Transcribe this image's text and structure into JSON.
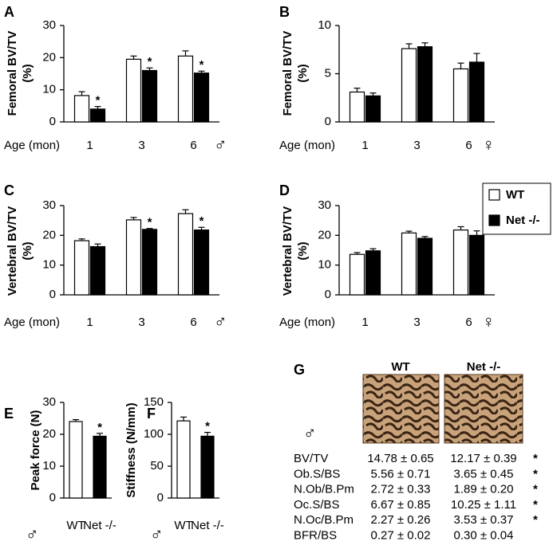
{
  "chart_data": [
    {
      "type": "bar",
      "panel": "A",
      "ylabel": [
        "Femoral BV/TV",
        "(%)"
      ],
      "xlabel": "Age (mon)",
      "sex": "♂",
      "categories": [
        "1",
        "3",
        "6"
      ],
      "ylim": [
        0,
        30
      ],
      "yticks": [
        0,
        10,
        20,
        30
      ],
      "series": [
        {
          "name": "WT",
          "color": "#ffffff",
          "values": [
            8.2,
            19.5,
            20.5
          ],
          "errors": [
            1.2,
            1.0,
            1.6
          ],
          "stars": [
            null,
            null,
            null
          ]
        },
        {
          "name": "Net -/-",
          "color": "#000000",
          "values": [
            4.0,
            16.0,
            15.2
          ],
          "errors": [
            0.8,
            0.8,
            0.6
          ],
          "stars": [
            "*",
            "*",
            "*"
          ]
        }
      ]
    },
    {
      "type": "bar",
      "panel": "B",
      "ylabel": [
        "Femoral BV/TV",
        "(%)"
      ],
      "xlabel": "Age (mon)",
      "sex": "♀",
      "categories": [
        "1",
        "3",
        "6"
      ],
      "ylim": [
        0,
        10
      ],
      "yticks": [
        0,
        5,
        10
      ],
      "series": [
        {
          "name": "WT",
          "color": "#ffffff",
          "values": [
            3.1,
            7.6,
            5.5
          ],
          "errors": [
            0.4,
            0.5,
            0.6
          ],
          "stars": [
            null,
            null,
            null
          ]
        },
        {
          "name": "Net -/-",
          "color": "#000000",
          "values": [
            2.7,
            7.8,
            6.2
          ],
          "errors": [
            0.3,
            0.4,
            0.9
          ],
          "stars": [
            null,
            null,
            null
          ]
        }
      ]
    },
    {
      "type": "bar",
      "panel": "C",
      "ylabel": [
        "Vertebral BV/TV",
        "(%)"
      ],
      "xlabel": "Age (mon)",
      "sex": "♂",
      "categories": [
        "1",
        "3",
        "6"
      ],
      "ylim": [
        0,
        30
      ],
      "yticks": [
        0,
        10,
        20,
        30
      ],
      "series": [
        {
          "name": "WT",
          "color": "#ffffff",
          "values": [
            18.2,
            25.2,
            27.3
          ],
          "errors": [
            0.6,
            0.8,
            1.3
          ],
          "stars": [
            null,
            null,
            null
          ]
        },
        {
          "name": "Net -/-",
          "color": "#000000",
          "values": [
            16.2,
            22.0,
            21.8
          ],
          "errors": [
            0.9,
            0.3,
            0.9
          ],
          "stars": [
            null,
            "*",
            "*"
          ]
        }
      ]
    },
    {
      "type": "bar",
      "panel": "D",
      "ylabel": [
        "Vertebral BV/TV",
        "(%)"
      ],
      "xlabel": "Age (mon)",
      "sex": "♀",
      "categories": [
        "1",
        "3",
        "6"
      ],
      "ylim": [
        0,
        30
      ],
      "yticks": [
        0,
        10,
        20,
        30
      ],
      "series": [
        {
          "name": "WT",
          "color": "#ffffff",
          "values": [
            13.6,
            20.8,
            21.8
          ],
          "errors": [
            0.6,
            0.6,
            1.1
          ],
          "stars": [
            null,
            null,
            null
          ]
        },
        {
          "name": "Net -/-",
          "color": "#000000",
          "values": [
            14.8,
            19.0,
            20.0
          ],
          "errors": [
            0.7,
            0.6,
            1.5
          ],
          "stars": [
            null,
            null,
            null
          ]
        }
      ]
    },
    {
      "type": "bar",
      "panel": "E",
      "ylabel": [
        "Peak force (N)"
      ],
      "sex": "♂",
      "categories": [
        "WT",
        "Net -/-"
      ],
      "ylim": [
        0,
        30
      ],
      "yticks": [
        0,
        10,
        20,
        30
      ],
      "values": [
        24.0,
        19.4
      ],
      "errors": [
        0.6,
        0.9
      ],
      "colors": [
        "#ffffff",
        "#000000"
      ],
      "stars": [
        null,
        "*"
      ]
    },
    {
      "type": "bar",
      "panel": "F",
      "ylabel": [
        "Stiffness (N/mm)"
      ],
      "sex": "♂",
      "categories": [
        "WT",
        "Net -/-"
      ],
      "ylim": [
        0,
        150
      ],
      "yticks": [
        0,
        50,
        100,
        150
      ],
      "values": [
        121,
        97
      ],
      "errors": [
        6,
        6
      ],
      "colors": [
        "#ffffff",
        "#000000"
      ],
      "stars": [
        null,
        "*"
      ]
    }
  ],
  "table": {
    "panel": "G",
    "sex": "♂",
    "columns": [
      "WT",
      "Net -/-"
    ],
    "rows": [
      [
        "BV/TV",
        "14.78 ± 0.65",
        "12.17 ± 0.39",
        "*"
      ],
      [
        "Ob.S/BS",
        "5.56 ± 0.71",
        "3.65 ± 0.45",
        "*"
      ],
      [
        "N.Ob/B.Pm",
        "2.72 ± 0.33",
        "1.89 ± 0.20",
        "*"
      ],
      [
        "Oc.S/BS",
        "6.67 ± 0.85",
        "10.25 ± 1.11",
        "*"
      ],
      [
        "N.Oc/B.Pm",
        "2.27 ± 0.26",
        "3.53 ± 0.37",
        "*"
      ],
      [
        "BFR/BS",
        "0.27 ± 0.02",
        "0.30 ± 0.04"
      ]
    ]
  }
}
